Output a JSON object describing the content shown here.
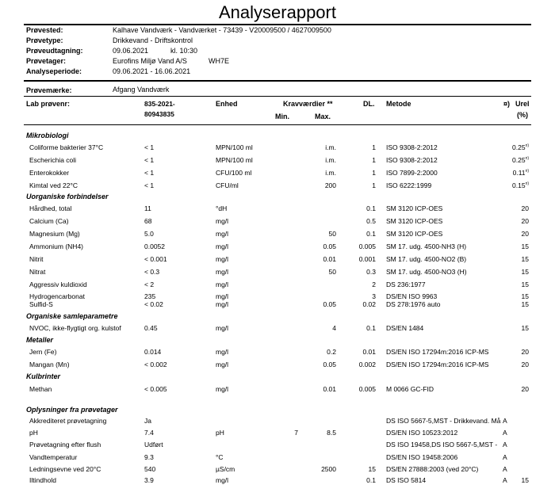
{
  "title": "Analyserapport",
  "header": [
    {
      "label": "Prøvested:",
      "value": "Kalhave Vandværk - Vandværket   -  73439   -  V20009500 / 4627009500"
    },
    {
      "label": "Prøvetype:",
      "value": "Drikkevand -  Driftskontrol"
    },
    {
      "label": "Prøveudtagning:",
      "value": "09.06.2021",
      "extra": "kl. 10:30"
    },
    {
      "label": "Prøvetager:",
      "value": "Eurofins Miljø Vand A/S",
      "extra": "WH7E"
    },
    {
      "label": "Analyseperiode:",
      "value": "09.06.2021 - 16.06.2021"
    }
  ],
  "sample_mark": {
    "label": "Prøvemærke:",
    "value": "Afgang Vandværk"
  },
  "columns": {
    "lab": "Lab prøvenr:",
    "sample_no_1": "835-2021-",
    "sample_no_2": "80943835",
    "unit": "Enhed",
    "krav": "Kravværdier **",
    "min": "Min.",
    "max": "Max.",
    "dl": "DL.",
    "method": "Metode",
    "a": "¤)",
    "urel": "Urel",
    "urel_pct": "(%)"
  },
  "sections": [
    {
      "title": "Mikrobiologi",
      "rows": [
        {
          "name": "Coliforme bakterier 37°C",
          "result": "< 1",
          "unit": "MPN/100 ml",
          "min": "",
          "max": "i.m.",
          "dl": "1",
          "method": "ISO 9308-2:2012",
          "a": "",
          "urel": "0.25",
          "urel_sup": "¤)"
        },
        {
          "name": "Escherichia coli",
          "result": "< 1",
          "unit": "MPN/100 ml",
          "min": "",
          "max": "i.m.",
          "dl": "1",
          "method": "ISO 9308-2:2012",
          "a": "",
          "urel": "0.25",
          "urel_sup": "¤)"
        },
        {
          "name": "Enterokokker",
          "result": "< 1",
          "unit": "CFU/100 ml",
          "min": "",
          "max": "i.m.",
          "dl": "1",
          "method": "ISO 7899-2:2000",
          "a": "",
          "urel": "0.11",
          "urel_sup": "¤)"
        },
        {
          "name": "Kimtal ved 22°C",
          "result": "< 1",
          "unit": "CFU/ml",
          "min": "",
          "max": "200",
          "dl": "1",
          "method": "ISO 6222:1999",
          "a": "",
          "urel": "0.15",
          "urel_sup": "¤)"
        }
      ]
    },
    {
      "title": "Uorganiske forbindelser",
      "rows": [
        {
          "name": "Hårdhed, total",
          "result": "11",
          "unit": "°dH",
          "min": "",
          "max": "",
          "dl": "0.1",
          "method": "SM 3120 ICP-OES",
          "a": "",
          "urel": "20",
          "urel_sup": ""
        },
        {
          "name": "Calcium (Ca)",
          "result": "68",
          "unit": "mg/l",
          "min": "",
          "max": "",
          "dl": "0.5",
          "method": "SM 3120 ICP-OES",
          "a": "",
          "urel": "20",
          "urel_sup": ""
        },
        {
          "name": "Magnesium (Mg)",
          "result": "5.0",
          "unit": "mg/l",
          "min": "",
          "max": "50",
          "dl": "0.1",
          "method": "SM 3120 ICP-OES",
          "a": "",
          "urel": "20",
          "urel_sup": ""
        },
        {
          "name": "Ammonium (NH4)",
          "result": "0.0052",
          "unit": "mg/l",
          "min": "",
          "max": "0.05",
          "dl": "0.005",
          "method": "SM 17. udg. 4500-NH3 (H)",
          "a": "",
          "urel": "15",
          "urel_sup": ""
        },
        {
          "name": "Nitrit",
          "result": "< 0.001",
          "unit": "mg/l",
          "min": "",
          "max": "0.01",
          "dl": "0.001",
          "method": "SM 17. udg. 4500-NO2 (B)",
          "a": "",
          "urel": "15",
          "urel_sup": ""
        },
        {
          "name": "Nitrat",
          "result": "< 0.3",
          "unit": "mg/l",
          "min": "",
          "max": "50",
          "dl": "0.3",
          "method": "SM 17. udg. 4500-NO3 (H)",
          "a": "",
          "urel": "15",
          "urel_sup": ""
        },
        {
          "name": "Aggressiv kuldioxid",
          "result": "< 2",
          "unit": "mg/l",
          "min": "",
          "max": "",
          "dl": "2",
          "method": "DS 236:1977",
          "a": "",
          "urel": "15",
          "urel_sup": ""
        },
        {
          "name": "Hydrogencarbonat",
          "result": "235",
          "unit": "mg/l",
          "min": "",
          "max": "",
          "dl": "3",
          "method": "DS/EN ISO 9963",
          "a": "",
          "urel": "15",
          "urel_sup": ""
        },
        {
          "name": "Sulfid-S",
          "result": "< 0.02",
          "unit": "mg/l",
          "min": "",
          "max": "0.05",
          "dl": "0.02",
          "method": "DS 278:1976 auto",
          "a": "",
          "urel": "15",
          "urel_sup": ""
        }
      ]
    },
    {
      "title": "Organiske samleparametre",
      "rows": [
        {
          "name": "NVOC, ikke-flygtigt org. kulstof",
          "result": "0.45",
          "unit": "mg/l",
          "min": "",
          "max": "4",
          "dl": "0.1",
          "method": "DS/EN 1484",
          "a": "",
          "urel": "15",
          "urel_sup": ""
        }
      ]
    },
    {
      "title": "Metaller",
      "rows": [
        {
          "name": "Jern (Fe)",
          "result": "0.014",
          "unit": "mg/l",
          "min": "",
          "max": "0.2",
          "dl": "0.01",
          "method": "DS/EN ISO 17294m:2016 ICP-MS",
          "a": "",
          "urel": "20",
          "urel_sup": ""
        },
        {
          "name": "Mangan (Mn)",
          "result": "< 0.002",
          "unit": "mg/l",
          "min": "",
          "max": "0.05",
          "dl": "0.002",
          "method": "DS/EN ISO 17294m:2016 ICP-MS",
          "a": "",
          "urel": "20",
          "urel_sup": ""
        }
      ]
    },
    {
      "title": "Kulbrinter",
      "rows": [
        {
          "name": "Methan",
          "result": "< 0.005",
          "unit": "mg/l",
          "min": "",
          "max": "0.01",
          "dl": "0.005",
          "method": "M 0066 GC-FID",
          "a": "",
          "urel": "20",
          "urel_sup": ""
        }
      ]
    },
    {
      "title": "Oplysninger fra prøvetager",
      "rows": [
        {
          "name": "Akkrediteret prøvetagning",
          "result": "Ja",
          "unit": "",
          "min": "",
          "max": "",
          "dl": "",
          "method": "DS ISO 5667-5,MST - Drikkevand. Må",
          "a": "A",
          "urel": "",
          "urel_sup": ""
        },
        {
          "name": "pH",
          "result": "7.4",
          "unit": "pH",
          "min": "7",
          "max": "8.5",
          "dl": "",
          "method": "DS/EN ISO 10523:2012",
          "a": "A",
          "urel": "",
          "urel_sup": ""
        },
        {
          "name": "Prøvetagning efter flush",
          "result": "Udført",
          "unit": "",
          "min": "",
          "max": "",
          "dl": "",
          "method": "DS ISO 19458,DS ISO 5667-5,MST -",
          "a": "A",
          "urel": "",
          "urel_sup": ""
        },
        {
          "name": "Vandtemperatur",
          "result": "9.3",
          "unit": "°C",
          "min": "",
          "max": "",
          "dl": "",
          "method": "DS/EN ISO 19458:2006",
          "a": "A",
          "urel": "",
          "urel_sup": ""
        },
        {
          "name": "Ledningsevne ved 20°C",
          "result": "540",
          "unit": "µS/cm",
          "min": "",
          "max": "2500",
          "dl": "15",
          "method": "DS/EN 27888:2003 (ved 20°C)",
          "a": "A",
          "urel": "",
          "urel_sup": ""
        },
        {
          "name": "Iltindhold",
          "result": "3.9",
          "unit": "mg/l",
          "min": "",
          "max": "",
          "dl": "0.1",
          "method": "DS ISO 5814",
          "a": "A",
          "urel": "15",
          "urel_sup": ""
        }
      ]
    }
  ]
}
